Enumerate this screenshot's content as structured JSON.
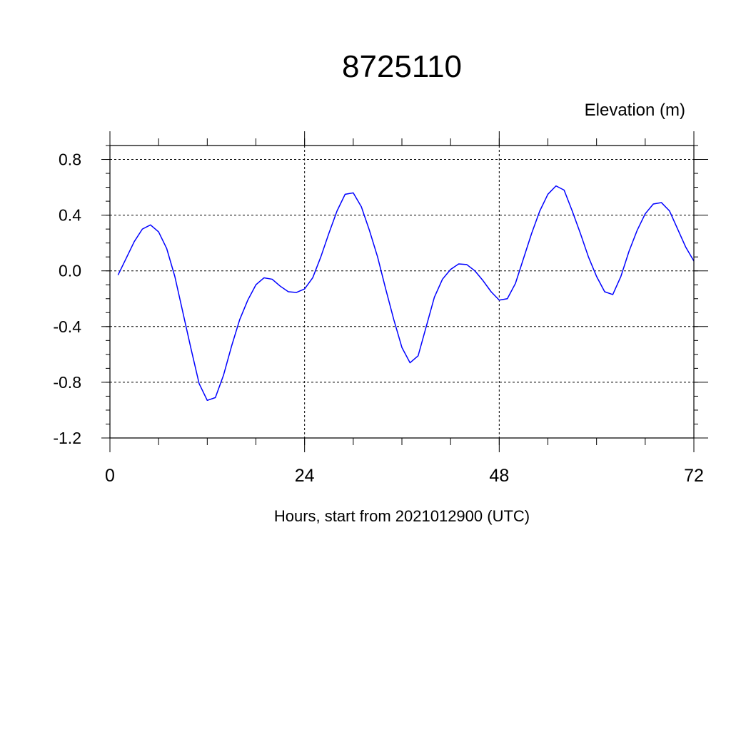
{
  "chart_data": {
    "type": "line",
    "title": "8725110",
    "ylabel": "Elevation (m)",
    "xlabel": "Hours, start from 2021012900 (UTC)",
    "xlim": [
      0,
      72
    ],
    "ylim": [
      -1.2,
      0.9
    ],
    "x_ticks": [
      0,
      24,
      48,
      72
    ],
    "x_tick_labels": [
      "0",
      "24",
      "48",
      "72"
    ],
    "y_ticks": [
      -1.2,
      -0.8,
      -0.4,
      0.0,
      0.4,
      0.8
    ],
    "y_tick_labels": [
      "-1.2",
      "-0.8",
      "-0.4",
      "0.0",
      "0.4",
      "0.8"
    ],
    "grid": true,
    "series": [
      {
        "color": "#0000ff",
        "x": [
          1,
          2,
          3,
          4,
          5,
          6,
          7,
          8,
          9,
          10,
          11,
          12,
          13,
          14,
          15,
          16,
          17,
          18,
          19,
          20,
          21,
          22,
          23,
          24,
          25,
          26,
          27,
          28,
          29,
          30,
          31,
          32,
          33,
          34,
          35,
          36,
          37,
          38,
          39,
          40,
          41,
          42,
          43,
          44,
          45,
          46,
          47,
          48,
          49,
          50,
          51,
          52,
          53,
          54,
          55,
          56,
          57,
          58,
          59,
          60,
          61,
          62,
          63,
          64,
          65,
          66,
          67,
          68,
          69,
          70,
          71,
          72
        ],
        "values": [
          -0.03,
          0.09,
          0.21,
          0.3,
          0.33,
          0.28,
          0.16,
          -0.04,
          -0.3,
          -0.56,
          -0.81,
          -0.93,
          -0.91,
          -0.75,
          -0.54,
          -0.35,
          -0.21,
          -0.1,
          -0.05,
          -0.06,
          -0.11,
          -0.15,
          -0.155,
          -0.13,
          -0.05,
          0.1,
          0.27,
          0.43,
          0.55,
          0.56,
          0.46,
          0.29,
          0.1,
          -0.13,
          -0.35,
          -0.55,
          -0.66,
          -0.61,
          -0.4,
          -0.19,
          -0.06,
          0.01,
          0.05,
          0.045,
          0.0,
          -0.07,
          -0.15,
          -0.21,
          -0.2,
          -0.09,
          0.09,
          0.27,
          0.43,
          0.55,
          0.61,
          0.58,
          0.43,
          0.27,
          0.1,
          -0.04,
          -0.15,
          -0.17,
          -0.04,
          0.14,
          0.29,
          0.41,
          0.48,
          0.49,
          0.43,
          0.3,
          0.17,
          0.07
        ]
      }
    ]
  }
}
